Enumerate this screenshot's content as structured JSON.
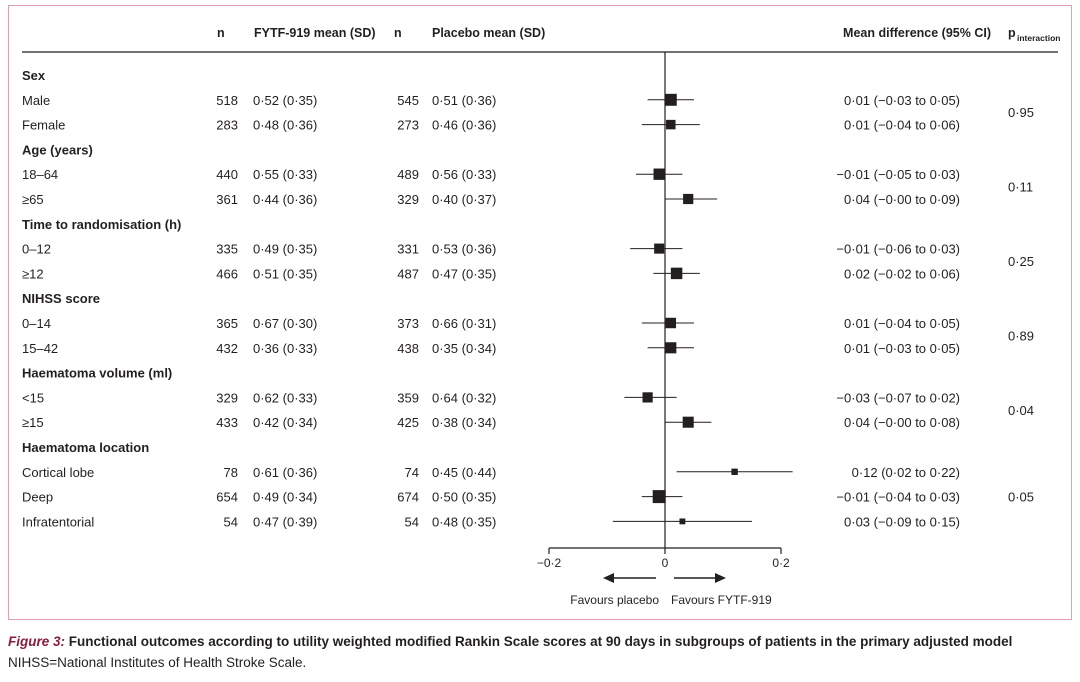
{
  "headers": {
    "n_active": "n",
    "active_mean": "FYTF-919 mean (SD)",
    "n_placebo": "n",
    "placebo_mean": "Placebo mean (SD)",
    "mean_diff": "Mean difference (95% CI)",
    "p_main": "p",
    "p_sub": "interaction"
  },
  "chart_data": {
    "type": "forest",
    "x_range": [
      -0.2,
      0.2
    ],
    "x_ticks": [
      {
        "value": -0.2,
        "label": "−0·2"
      },
      {
        "value": 0,
        "label": "0"
      },
      {
        "value": 0.2,
        "label": "0·2"
      }
    ],
    "direction_left": "Favours placebo",
    "direction_right": "Favours FYTF-919",
    "groups": [
      {
        "label": "Sex",
        "p": "0·95",
        "rows": [
          {
            "label": "Male",
            "n_a": "518",
            "mean_a": "0·52 (0·35)",
            "n_p": "545",
            "mean_p": "0·51 (0·36)",
            "diff": "0·01 (−0·03 to 0·05)",
            "est": 0.01,
            "lo": -0.03,
            "hi": 0.05
          },
          {
            "label": "Female",
            "n_a": "283",
            "mean_a": "0·48 (0·36)",
            "n_p": "273",
            "mean_p": "0·46 (0·36)",
            "diff": "0·01 (−0·04 to 0·06)",
            "est": 0.01,
            "lo": -0.04,
            "hi": 0.06
          }
        ]
      },
      {
        "label": "Age (years)",
        "p": "0·11",
        "rows": [
          {
            "label": "18–64",
            "n_a": "440",
            "mean_a": "0·55 (0·33)",
            "n_p": "489",
            "mean_p": "0·56 (0·33)",
            "diff": "−0·01 (−0·05 to 0·03)",
            "est": -0.01,
            "lo": -0.05,
            "hi": 0.03
          },
          {
            "label": "≥65",
            "n_a": "361",
            "mean_a": "0·44 (0·36)",
            "n_p": "329",
            "mean_p": "0·40 (0·37)",
            "diff": "0·04 (−0·00 to 0·09)",
            "est": 0.04,
            "lo": 0.0,
            "hi": 0.09
          }
        ]
      },
      {
        "label": "Time to randomisation (h)",
        "p": "0·25",
        "rows": [
          {
            "label": "0–12",
            "n_a": "335",
            "mean_a": "0·49 (0·35)",
            "n_p": "331",
            "mean_p": "0·53 (0·36)",
            "diff": "−0·01 (−0·06 to 0·03)",
            "est": -0.01,
            "lo": -0.06,
            "hi": 0.03
          },
          {
            "label": "≥12",
            "n_a": "466",
            "mean_a": "0·51 (0·35)",
            "n_p": "487",
            "mean_p": "0·47 (0·35)",
            "diff": "0·02 (−0·02 to 0·06)",
            "est": 0.02,
            "lo": -0.02,
            "hi": 0.06
          }
        ]
      },
      {
        "label": "NIHSS score",
        "p": "0·89",
        "rows": [
          {
            "label": "0–14",
            "n_a": "365",
            "mean_a": "0·67 (0·30)",
            "n_p": "373",
            "mean_p": "0·66 (0·31)",
            "diff": "0·01 (−0·04 to 0·05)",
            "est": 0.01,
            "lo": -0.04,
            "hi": 0.05
          },
          {
            "label": "15–42",
            "n_a": "432",
            "mean_a": "0·36 (0·33)",
            "n_p": "438",
            "mean_p": "0·35 (0·34)",
            "diff": "0·01 (−0·03 to 0·05)",
            "est": 0.01,
            "lo": -0.03,
            "hi": 0.05
          }
        ]
      },
      {
        "label": "Haematoma volume (ml)",
        "p": "0·04",
        "rows": [
          {
            "label": "<15",
            "n_a": "329",
            "mean_a": "0·62 (0·33)",
            "n_p": "359",
            "mean_p": "0·64 (0·32)",
            "diff": "−0·03 (−0·07 to 0·02)",
            "est": -0.03,
            "lo": -0.07,
            "hi": 0.02
          },
          {
            "label": "≥15",
            "n_a": "433",
            "mean_a": "0·42 (0·34)",
            "n_p": "425",
            "mean_p": "0·38 (0·34)",
            "diff": "0·04 (−0·00 to 0·08)",
            "est": 0.04,
            "lo": 0.0,
            "hi": 0.08
          }
        ]
      },
      {
        "label": "Haematoma location",
        "p": "0·05",
        "rows": [
          {
            "label": "Cortical lobe",
            "n_a": "78",
            "mean_a": "0·61 (0·36)",
            "n_p": "74",
            "mean_p": "0·45 (0·44)",
            "diff": "0·12 (0·02 to 0·22)",
            "est": 0.12,
            "lo": 0.02,
            "hi": 0.22
          },
          {
            "label": "Deep",
            "n_a": "654",
            "mean_a": "0·49 (0·34)",
            "n_p": "674",
            "mean_p": "0·50 (0·35)",
            "diff": "−0·01 (−0·04 to 0·03)",
            "est": -0.01,
            "lo": -0.04,
            "hi": 0.03
          },
          {
            "label": "Infratentorial",
            "n_a": "54",
            "mean_a": "0·47 (0·39)",
            "n_p": "54",
            "mean_p": "0·48 (0·35)",
            "diff": "0·03 (−0·09 to 0·15)",
            "est": 0.03,
            "lo": -0.09,
            "hi": 0.15
          }
        ]
      }
    ]
  },
  "caption": {
    "label": "Figure 3:",
    "text": " Functional outcomes according to utility weighted modified Rankin Scale scores at 90 days in subgroups of patients in the primary adjusted model",
    "note": "NIHSS=National Institutes of Health Stroke Scale."
  }
}
